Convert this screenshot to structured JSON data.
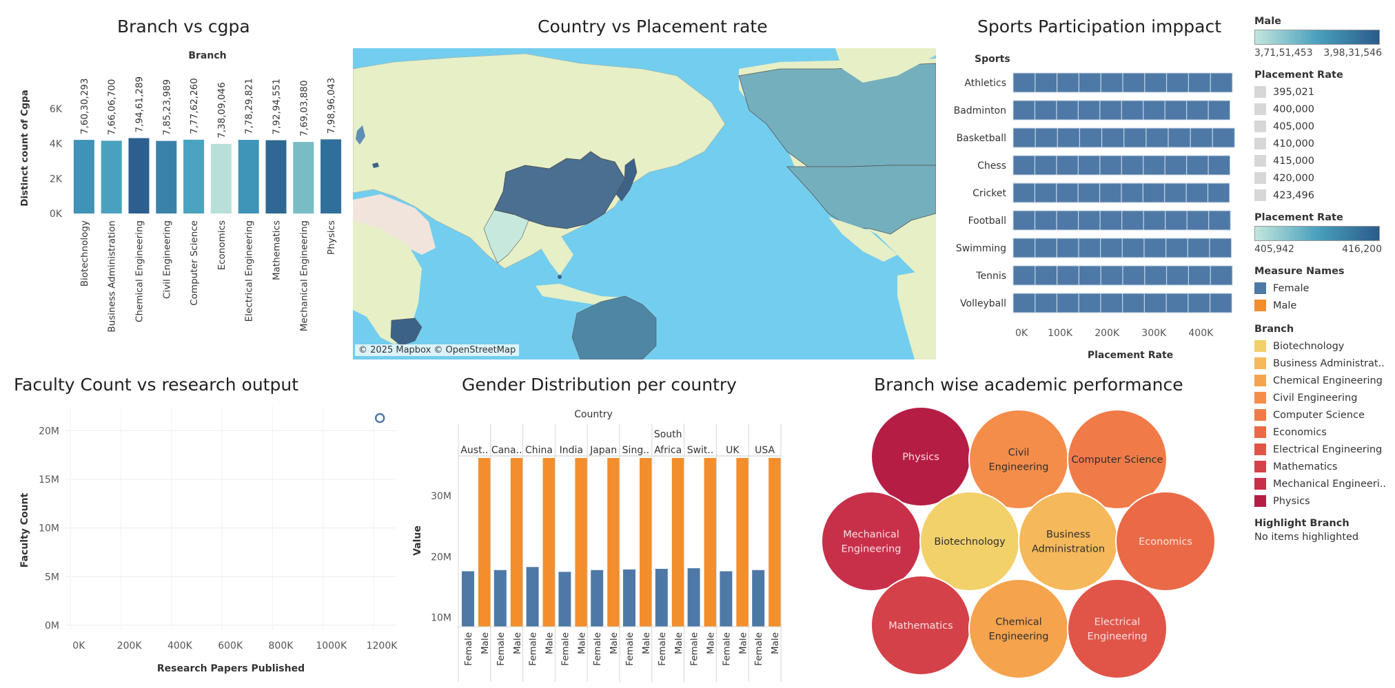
{
  "panels": {
    "branch_cgpa_title": "Branch vs cgpa",
    "placement_map_title": "Country vs Placement rate",
    "sports_title": "Sports Participation imppact",
    "faculty_title": "Faculty Count vs research output",
    "gender_title": "Gender Distribution per country",
    "academic_title": "Branch wise academic performance"
  },
  "map": {
    "credit": "© 2025 Mapbox © OpenStreetMap"
  },
  "legend": {
    "male_title": "Male",
    "male_min": "3,71,51,453",
    "male_max": "3,98,31,546",
    "placement_title": "Placement Rate",
    "placement_items": [
      "395,021",
      "400,000",
      "405,000",
      "410,000",
      "415,000",
      "420,000",
      "423,496"
    ],
    "placement_ramp_title": "Placement Rate",
    "placement_ramp_min": "405,942",
    "placement_ramp_max": "416,200",
    "measure_title": "Measure Names",
    "measure_items": [
      "Female",
      "Male"
    ],
    "branch_title": "Branch",
    "branch_items": [
      "Biotechnology",
      "Business Administrat..",
      "Chemical Engineering",
      "Civil Engineering",
      "Computer Science",
      "Economics",
      "Electrical Engineering",
      "Mathematics",
      "Mechanical Engineeri..",
      "Physics"
    ],
    "highlight_title": "Highlight Branch",
    "highlight_text": "No items highlighted",
    "colors": {
      "female": "#4e79a7",
      "male": "#f28e2b",
      "branch": [
        "#f2d16b",
        "#f5b85a",
        "#f6a34e",
        "#f58d4a",
        "#f07b48",
        "#ea6a47",
        "#e05548",
        "#d44149",
        "#c8304a",
        "#b51d45"
      ]
    }
  },
  "chart_data": [
    {
      "type": "bar",
      "title": "Branch vs cgpa",
      "xlabel": "Branch",
      "ylabel": "Distinct count of Cgpa",
      "ylim": [
        0,
        7500
      ],
      "yticks": [
        "0K",
        "2K",
        "4K",
        "6K"
      ],
      "categories": [
        "Biotechnology",
        "Business Administration",
        "Chemical Engineering",
        "Civil Engineering",
        "Computer Science",
        "Economics",
        "Electrical Engineering",
        "Mathematics",
        "Mechanical Engineering",
        "Physics"
      ],
      "values": [
        4220,
        4170,
        4320,
        4160,
        4230,
        3990,
        4220,
        4200,
        4100,
        4250
      ],
      "data_labels": [
        "7,60,30,293",
        "7,66,06,700",
        "7,94,61,289",
        "7,85,23,989",
        "7,77,62,260",
        "7,38,09,046",
        "7,78,29,821",
        "7,92,94,551",
        "7,69,03,880",
        "7,98,96,043"
      ],
      "colors": [
        "#3f93b6",
        "#4aa1bf",
        "#2c5f8e",
        "#3b82a9",
        "#4aa3c0",
        "#b8e0d8",
        "#3f95b8",
        "#2e6893",
        "#79bcc6",
        "#306f9b"
      ]
    },
    {
      "type": "bar",
      "title": "Sports Participation imppact",
      "xlabel": "Placement Rate",
      "ylabel": "Sports",
      "xlim": [
        0,
        470000
      ],
      "xticks": [
        "0K",
        "100K",
        "200K",
        "300K",
        "400K"
      ],
      "categories": [
        "Athletics",
        "Badminton",
        "Basketball",
        "Chess",
        "Cricket",
        "Football",
        "Swimming",
        "Tennis",
        "Volleyball"
      ],
      "values": [
        467000,
        462000,
        472000,
        462000,
        461000,
        463000,
        465000,
        467000,
        466000
      ]
    },
    {
      "type": "scatter",
      "title": "Faculty Count vs research output",
      "xlabel": "Research Papers Published",
      "ylabel": "Faculty Count",
      "xlim": [
        -20000,
        1290000
      ],
      "ylim": [
        -500000,
        22500000
      ],
      "xticks": [
        "0K",
        "200K",
        "400K",
        "600K",
        "800K",
        "1000K",
        "1200K"
      ],
      "yticks": [
        "0M",
        "5M",
        "10M",
        "15M",
        "20M"
      ],
      "x": [
        1225000
      ],
      "y": [
        21300000
      ]
    },
    {
      "type": "bar",
      "title": "Gender Distribution per country",
      "xlabel": "Country",
      "ylabel": "Value",
      "ylim": [
        8500000,
        36200000
      ],
      "yticks": [
        "10M",
        "20M",
        "30M"
      ],
      "categories": [
        "Aust..",
        "Cana..",
        "China",
        "India",
        "Japan",
        "Sing..",
        "South Africa",
        "Swit..",
        "UK",
        "USA"
      ],
      "sublabels": [
        "Female",
        "Male"
      ],
      "series": [
        {
          "name": "Female",
          "values": [
            17600000,
            17800000,
            18300000,
            17500000,
            17800000,
            17900000,
            18000000,
            18100000,
            17600000,
            17800000
          ]
        },
        {
          "name": "Male",
          "values": [
            38000000,
            38000000,
            38000000,
            38000000,
            38000000,
            38000000,
            38000000,
            38000000,
            38000000,
            38000000
          ]
        }
      ]
    }
  ],
  "bubbles": [
    {
      "label": "Physics",
      "color": "#b51d45",
      "text": "#f7dfe2"
    },
    {
      "label": "Civil Engineering",
      "color": "#f58d4a",
      "text": "#2e2e2e"
    },
    {
      "label": "Computer Science",
      "color": "#f07b48",
      "text": "#2e2e2e"
    },
    {
      "label": "Mechanical Engineering",
      "color": "#c8304a",
      "text": "#f7dfe2"
    },
    {
      "label": "Biotechnology",
      "color": "#f2d16b",
      "text": "#2e2e2e"
    },
    {
      "label": "Business Administration",
      "color": "#f5b85a",
      "text": "#2e2e2e"
    },
    {
      "label": "Economics",
      "color": "#ea6a47",
      "text": "#f7e5dc"
    },
    {
      "label": "Mathematics",
      "color": "#d44149",
      "text": "#f7dfe2"
    },
    {
      "label": "Chemical Engineering",
      "color": "#f6a34e",
      "text": "#2e2e2e"
    },
    {
      "label": "Electrical Engineering",
      "color": "#e05548",
      "text": "#f7dfe2"
    }
  ]
}
